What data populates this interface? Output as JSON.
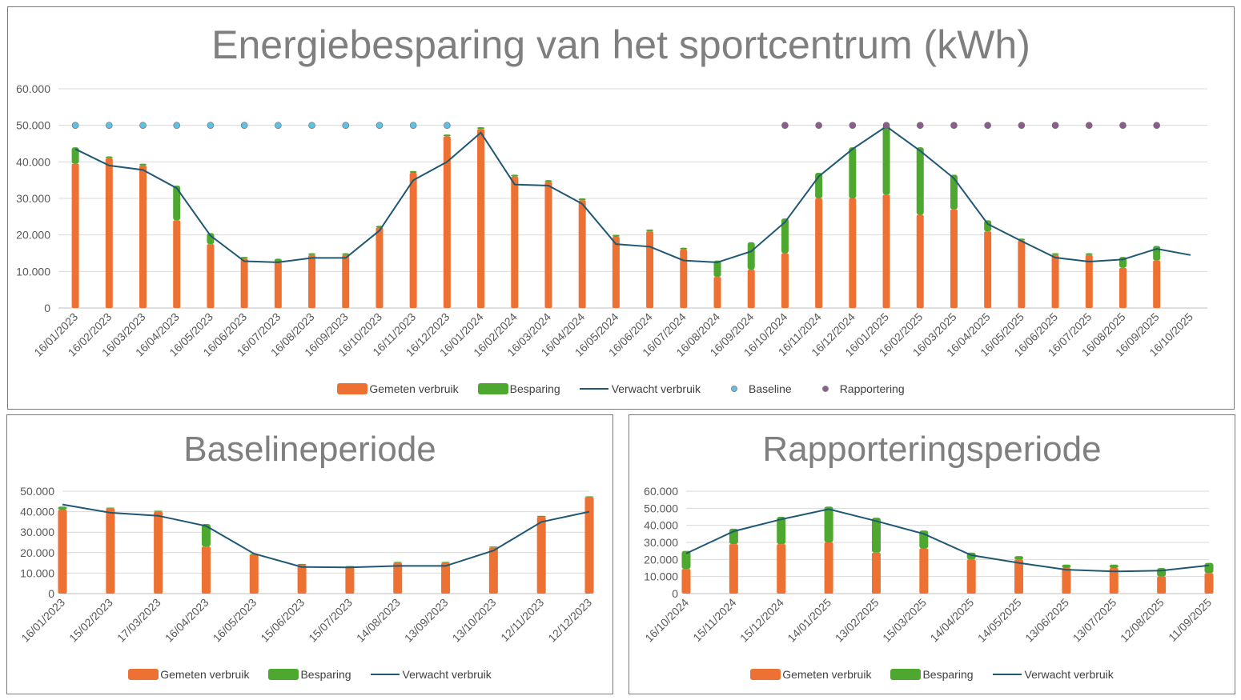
{
  "colors": {
    "measured": "#ED7132",
    "saving": "#4EA72E",
    "expected": "#1F5873",
    "baseline": "#5FC0E6",
    "reporting": "#8C5C8C",
    "grid": "#D9D9D9",
    "axis_text": "#595959"
  },
  "legend": {
    "measured": "Gemeten verbruik",
    "saving": "Besparing",
    "expected": "Verwacht verbruik",
    "baseline": "Baseline",
    "reporting": "Rapportering"
  },
  "chart_data": [
    {
      "id": "main",
      "type": "bar",
      "title": "Energiebesparing van het sportcentrum (kWh)",
      "xlabel": "",
      "ylabel": "",
      "ylim": [
        0,
        60000
      ],
      "yticks": [
        "0",
        "10.000",
        "20.000",
        "30.000",
        "40.000",
        "50.000",
        "60.000"
      ],
      "categories": [
        "16/01/2023",
        "16/02/2023",
        "16/03/2023",
        "16/04/2023",
        "16/05/2023",
        "16/06/2023",
        "16/07/2023",
        "16/08/2023",
        "16/09/2023",
        "16/10/2023",
        "16/11/2023",
        "16/12/2023",
        "16/01/2024",
        "16/02/2024",
        "16/03/2024",
        "16/04/2024",
        "16/05/2024",
        "16/06/2024",
        "16/07/2024",
        "16/08/2024",
        "16/09/2024",
        "16/10/2024",
        "16/11/2024",
        "16/12/2024",
        "16/01/2025",
        "16/02/2025",
        "16/03/2025",
        "16/04/2025",
        "16/05/2025",
        "16/06/2025",
        "16/07/2025",
        "16/08/2025",
        "16/09/2025",
        "16/10/2025"
      ],
      "series": [
        {
          "name": "Gemeten verbruik",
          "kind": "bar",
          "values": [
            39500,
            41000,
            39000,
            24000,
            17500,
            13500,
            12500,
            14500,
            14500,
            22000,
            37000,
            47000,
            49000,
            36000,
            34500,
            29500,
            19500,
            21000,
            16000,
            8500,
            10500,
            15000,
            30000,
            30000,
            31000,
            25500,
            27000,
            21000,
            18500,
            14500,
            14500,
            11000,
            13000,
            null
          ]
        },
        {
          "name": "Besparing",
          "kind": "bar",
          "values": [
            4500,
            500,
            500,
            9500,
            3000,
            500,
            1000,
            500,
            500,
            500,
            500,
            500,
            500,
            500,
            500,
            500,
            500,
            500,
            500,
            4500,
            7500,
            9500,
            7000,
            14000,
            19000,
            18500,
            9500,
            3000,
            500,
            500,
            500,
            3000,
            4000,
            null
          ]
        },
        {
          "name": "Verwacht verbruik",
          "kind": "line",
          "values": [
            43500,
            39000,
            37800,
            32800,
            19800,
            12800,
            12500,
            13700,
            13700,
            21200,
            35000,
            40000,
            48000,
            33800,
            33500,
            28500,
            17500,
            16800,
            13000,
            12500,
            15500,
            23500,
            36000,
            43500,
            49700,
            43000,
            35500,
            23000,
            18300,
            13800,
            12700,
            13300,
            16200,
            14500
          ]
        },
        {
          "name": "Baseline",
          "kind": "marker",
          "values": [
            50000,
            50000,
            50000,
            50000,
            50000,
            50000,
            50000,
            50000,
            50000,
            50000,
            50000,
            50000,
            null,
            null,
            null,
            null,
            null,
            null,
            null,
            null,
            null,
            null,
            null,
            null,
            null,
            null,
            null,
            null,
            null,
            null,
            null,
            null,
            null,
            null
          ]
        },
        {
          "name": "Rapportering",
          "kind": "marker",
          "values": [
            null,
            null,
            null,
            null,
            null,
            null,
            null,
            null,
            null,
            null,
            null,
            null,
            null,
            null,
            null,
            null,
            null,
            null,
            null,
            null,
            null,
            50000,
            50000,
            50000,
            50000,
            50000,
            50000,
            50000,
            50000,
            50000,
            50000,
            50000,
            50000,
            null
          ]
        }
      ]
    },
    {
      "id": "baseline",
      "type": "bar",
      "title": "Baselineperiode",
      "xlabel": "",
      "ylabel": "",
      "ylim": [
        0,
        50000
      ],
      "yticks": [
        "0",
        "10.000",
        "20.000",
        "30.000",
        "40.000",
        "50.000"
      ],
      "categories": [
        "16/01/2023",
        "15/02/2023",
        "17/03/2023",
        "16/04/2023",
        "16/05/2023",
        "15/06/2023",
        "15/07/2023",
        "14/08/2023",
        "13/09/2023",
        "13/10/2023",
        "12/11/2023",
        "12/12/2023"
      ],
      "series": [
        {
          "name": "Gemeten verbruik",
          "kind": "bar",
          "values": [
            41000,
            41500,
            40000,
            23000,
            19000,
            14000,
            13000,
            15000,
            15000,
            22500,
            37500,
            47000
          ]
        },
        {
          "name": "Besparing",
          "kind": "bar",
          "values": [
            1500,
            500,
            500,
            11000,
            500,
            500,
            500,
            500,
            500,
            500,
            500,
            500
          ]
        },
        {
          "name": "Verwacht verbruik",
          "kind": "line",
          "values": [
            43500,
            39500,
            38000,
            33000,
            19500,
            13000,
            12800,
            13500,
            13500,
            21000,
            35000,
            40000
          ]
        }
      ]
    },
    {
      "id": "reporting",
      "type": "bar",
      "title": "Rapporteringsperiode",
      "xlabel": "",
      "ylabel": "",
      "ylim": [
        0,
        60000
      ],
      "yticks": [
        "0",
        "10.000",
        "20.000",
        "30.000",
        "40.000",
        "50.000",
        "60.000"
      ],
      "categories": [
        "16/10/2024",
        "15/11/2024",
        "15/12/2024",
        "14/01/2025",
        "13/02/2025",
        "15/03/2025",
        "14/04/2025",
        "14/05/2025",
        "13/06/2025",
        "13/07/2025",
        "12/08/2025",
        "11/09/2025"
      ],
      "series": [
        {
          "name": "Gemeten verbruik",
          "kind": "bar",
          "values": [
            14500,
            29000,
            29000,
            30000,
            24000,
            26500,
            20000,
            20000,
            15000,
            15000,
            10000,
            12000
          ]
        },
        {
          "name": "Besparing",
          "kind": "bar",
          "values": [
            10500,
            9000,
            16000,
            21000,
            20500,
            10500,
            4000,
            2000,
            2000,
            2000,
            5000,
            6000
          ]
        },
        {
          "name": "Verwacht verbruik",
          "kind": "line",
          "values": [
            23500,
            36500,
            43500,
            49500,
            42500,
            35000,
            22500,
            18000,
            14000,
            13000,
            13500,
            16500
          ]
        }
      ]
    }
  ]
}
